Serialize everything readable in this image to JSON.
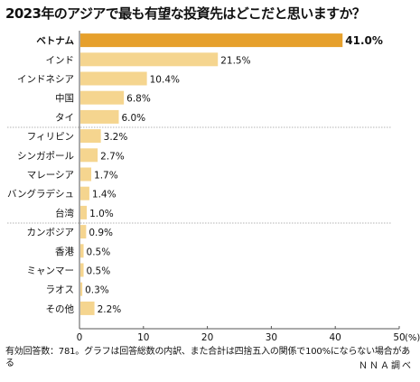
{
  "chart_data": {
    "type": "bar",
    "orientation": "horizontal",
    "title": "2023年のアジアで最も有望な投資先はどこだと思いますか？",
    "categories": [
      "ベトナム",
      "インド",
      "インドネシア",
      "中国",
      "タイ",
      "フィリピン",
      "シンガポール",
      "マレーシア",
      "バングラデシュ",
      "台湾",
      "カンボジア",
      "香港",
      "ミャンマー",
      "ラオス",
      "その他"
    ],
    "values": [
      41.0,
      21.5,
      10.4,
      6.8,
      6.0,
      3.2,
      2.7,
      1.7,
      1.4,
      1.0,
      0.9,
      0.5,
      0.5,
      0.3,
      2.2
    ],
    "value_labels": [
      "41.0%",
      "21.5%",
      "10.4%",
      "6.8%",
      "6.0%",
      "3.2%",
      "2.7%",
      "1.7%",
      "1.4%",
      "1.0%",
      "0.9%",
      "0.5%",
      "0.5%",
      "0.3%",
      "2.2%"
    ],
    "xlim": [
      0,
      50
    ],
    "x_ticks": [
      "0",
      "10",
      "20",
      "30",
      "40",
      "50"
    ],
    "x_unit": "(%)",
    "highlight_index": 0,
    "separators_after": [
      4,
      9
    ],
    "colors": {
      "highlight": "#E6A02C",
      "bar": "#F5D58F",
      "separator": "#9a9a9a"
    },
    "note": "有効回答数：781。グラフは回答総数の内訳、また合計は四捨五入の関係で100%にならない場合がある",
    "credit": "ＮＮＡ調べ"
  }
}
